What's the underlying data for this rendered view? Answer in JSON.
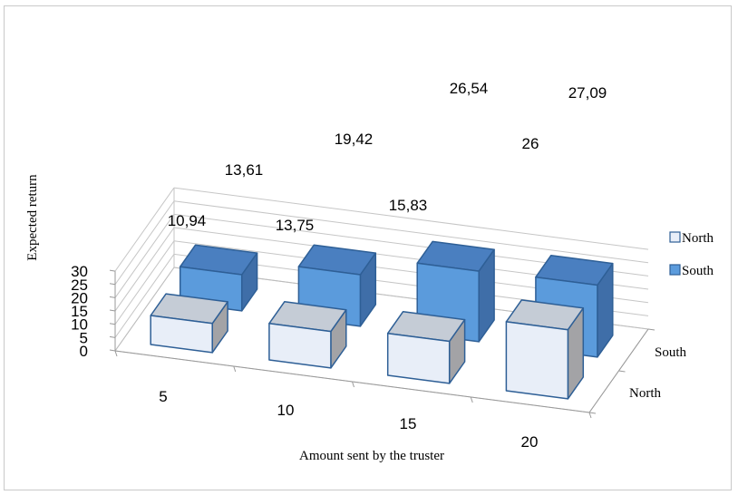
{
  "chart_data": {
    "type": "bar",
    "subtype": "3d-clustered-column",
    "title": "",
    "xlabel": "Amount sent by the truster",
    "ylabel": "Expected return",
    "categories": [
      "5",
      "10",
      "15",
      "20"
    ],
    "depth_labels": [
      "South",
      "North"
    ],
    "series": [
      {
        "name": "North",
        "values": [
          10.94,
          13.75,
          15.83,
          26
        ],
        "labels": [
          "10,94",
          "13,75",
          "15,83",
          "26"
        ],
        "color": "#e8eef8"
      },
      {
        "name": "South",
        "values": [
          13.61,
          19.42,
          26.54,
          27.09
        ],
        "labels": [
          "13,61",
          "19,42",
          "26,54",
          "27,09"
        ],
        "color": "#5b9bdc"
      }
    ],
    "ylim": [
      0,
      30
    ],
    "yticks": [
      "0",
      "5",
      "10",
      "15",
      "20",
      "25",
      "30"
    ],
    "grid": true,
    "legend": "right",
    "edge_color": "#2e5f96"
  }
}
